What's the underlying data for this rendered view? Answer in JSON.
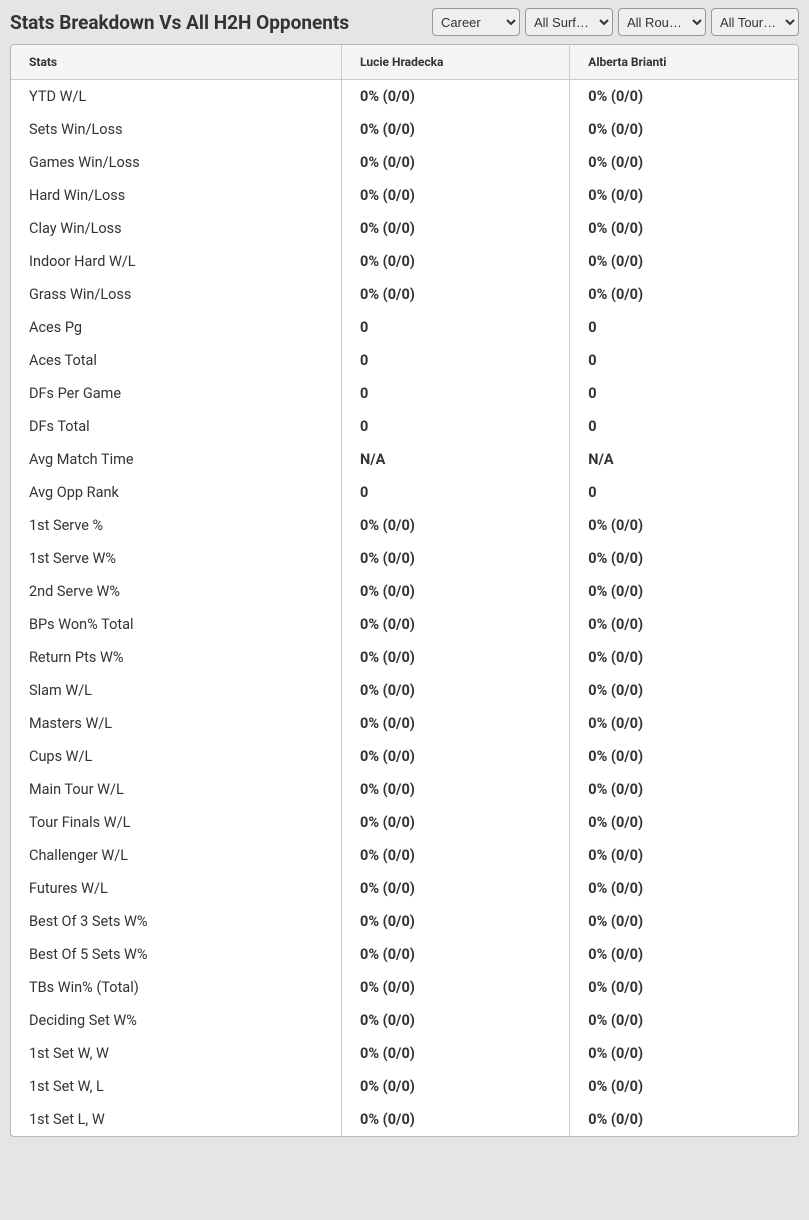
{
  "header": {
    "title": "Stats Breakdown Vs All H2H Opponents"
  },
  "filters": {
    "career": {
      "selected": "Career",
      "options": [
        "Career"
      ]
    },
    "surface": {
      "selected": "All Surf…",
      "options": [
        "All Surf…"
      ]
    },
    "round": {
      "selected": "All Rou…",
      "options": [
        "All Rou…"
      ]
    },
    "tourney": {
      "selected": "All Tour…",
      "options": [
        "All Tour…"
      ]
    }
  },
  "table": {
    "columns": {
      "stats": "Stats",
      "player1": "Lucie Hradecka",
      "player2": "Alberta Brianti"
    },
    "rows": [
      {
        "label": "YTD W/L",
        "p1": "0% (0/0)",
        "p2": "0% (0/0)"
      },
      {
        "label": "Sets Win/Loss",
        "p1": "0% (0/0)",
        "p2": "0% (0/0)"
      },
      {
        "label": "Games Win/Loss",
        "p1": "0% (0/0)",
        "p2": "0% (0/0)"
      },
      {
        "label": "Hard Win/Loss",
        "p1": "0% (0/0)",
        "p2": "0% (0/0)"
      },
      {
        "label": "Clay Win/Loss",
        "p1": "0% (0/0)",
        "p2": "0% (0/0)"
      },
      {
        "label": "Indoor Hard W/L",
        "p1": "0% (0/0)",
        "p2": "0% (0/0)"
      },
      {
        "label": "Grass Win/Loss",
        "p1": "0% (0/0)",
        "p2": "0% (0/0)"
      },
      {
        "label": "Aces Pg",
        "p1": "0",
        "p2": "0"
      },
      {
        "label": "Aces Total",
        "p1": "0",
        "p2": "0"
      },
      {
        "label": "DFs Per Game",
        "p1": "0",
        "p2": "0"
      },
      {
        "label": "DFs Total",
        "p1": "0",
        "p2": "0"
      },
      {
        "label": "Avg Match Time",
        "p1": "N/A",
        "p2": "N/A"
      },
      {
        "label": "Avg Opp Rank",
        "p1": "0",
        "p2": "0"
      },
      {
        "label": "1st Serve %",
        "p1": "0% (0/0)",
        "p2": "0% (0/0)"
      },
      {
        "label": "1st Serve W%",
        "p1": "0% (0/0)",
        "p2": "0% (0/0)"
      },
      {
        "label": "2nd Serve W%",
        "p1": "0% (0/0)",
        "p2": "0% (0/0)"
      },
      {
        "label": "BPs Won% Total",
        "p1": "0% (0/0)",
        "p2": "0% (0/0)"
      },
      {
        "label": "Return Pts W%",
        "p1": "0% (0/0)",
        "p2": "0% (0/0)"
      },
      {
        "label": "Slam W/L",
        "p1": "0% (0/0)",
        "p2": "0% (0/0)"
      },
      {
        "label": "Masters W/L",
        "p1": "0% (0/0)",
        "p2": "0% (0/0)"
      },
      {
        "label": "Cups W/L",
        "p1": "0% (0/0)",
        "p2": "0% (0/0)"
      },
      {
        "label": "Main Tour W/L",
        "p1": "0% (0/0)",
        "p2": "0% (0/0)"
      },
      {
        "label": "Tour Finals W/L",
        "p1": "0% (0/0)",
        "p2": "0% (0/0)"
      },
      {
        "label": "Challenger W/L",
        "p1": "0% (0/0)",
        "p2": "0% (0/0)"
      },
      {
        "label": "Futures W/L",
        "p1": "0% (0/0)",
        "p2": "0% (0/0)"
      },
      {
        "label": "Best Of 3 Sets W%",
        "p1": "0% (0/0)",
        "p2": "0% (0/0)"
      },
      {
        "label": "Best Of 5 Sets W%",
        "p1": "0% (0/0)",
        "p2": "0% (0/0)"
      },
      {
        "label": "TBs Win% (Total)",
        "p1": "0% (0/0)",
        "p2": "0% (0/0)"
      },
      {
        "label": "Deciding Set W%",
        "p1": "0% (0/0)",
        "p2": "0% (0/0)"
      },
      {
        "label": "1st Set W, W",
        "p1": "0% (0/0)",
        "p2": "0% (0/0)"
      },
      {
        "label": "1st Set W, L",
        "p1": "0% (0/0)",
        "p2": "0% (0/0)"
      },
      {
        "label": "1st Set L, W",
        "p1": "0% (0/0)",
        "p2": "0% (0/0)"
      }
    ]
  },
  "styling": {
    "background_color": "#e5e5e5",
    "table_background": "#ffffff",
    "header_row_background": "#f5f5f5",
    "border_color": "#cccccc",
    "text_color": "#333333",
    "title_fontsize": 19,
    "header_fontsize": 12,
    "cell_fontsize": 14.5
  }
}
